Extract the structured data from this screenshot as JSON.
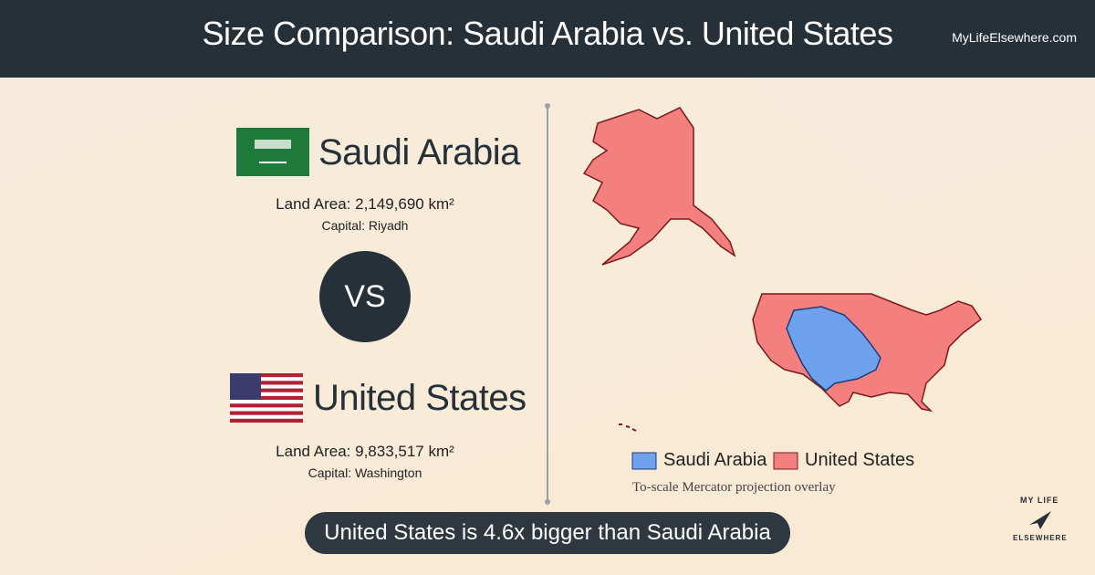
{
  "header": {
    "title": "Size Comparison: Saudi Arabia vs. United States",
    "site": "MyLifeElsewhere.com"
  },
  "countries": [
    {
      "name": "Saudi Arabia",
      "land_area": "Land Area: 2,149,690 km²",
      "capital": "Capital: Riyadh"
    },
    {
      "name": "United States",
      "land_area": "Land Area: 9,833,517 km²",
      "capital": "Capital: Washington"
    }
  ],
  "vs": "VS",
  "legend": [
    "Saudi Arabia",
    "United States"
  ],
  "map_note": "To-scale Mercator projection overlay",
  "summary": "United States is 4.6x bigger than Saudi Arabia",
  "logo": [
    "MY LIFE",
    "ELSEWHERE"
  ]
}
